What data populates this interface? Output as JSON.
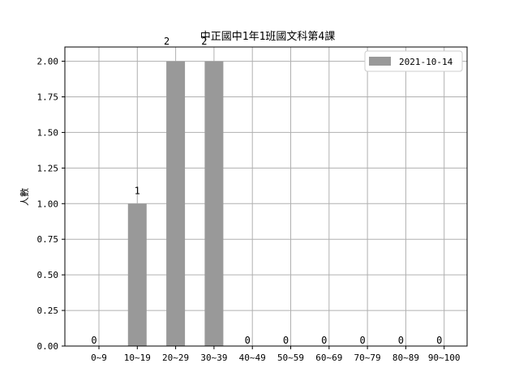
{
  "chart_data": {
    "type": "bar",
    "title": "中正國中1年1班國文科第4課",
    "xlabel": "",
    "ylabel": "人數",
    "categories": [
      "0~9",
      "10~19",
      "20~29",
      "30~39",
      "40~49",
      "50~59",
      "60~69",
      "70~79",
      "80~89",
      "90~100"
    ],
    "series": [
      {
        "name": "2021-10-14",
        "values": [
          0,
          1,
          2,
          2,
          0,
          0,
          0,
          0,
          0,
          0
        ],
        "color": "#999999"
      }
    ],
    "data_labels": [
      "0",
      "1",
      "2",
      "2",
      "0",
      "0",
      "0",
      "0",
      "0",
      "0"
    ],
    "ylim": [
      0,
      2.1
    ],
    "yticks": [
      "0.00",
      "0.25",
      "0.50",
      "0.75",
      "1.00",
      "1.25",
      "1.50",
      "1.75",
      "2.00"
    ],
    "grid": true,
    "legend_position": "top-right"
  }
}
